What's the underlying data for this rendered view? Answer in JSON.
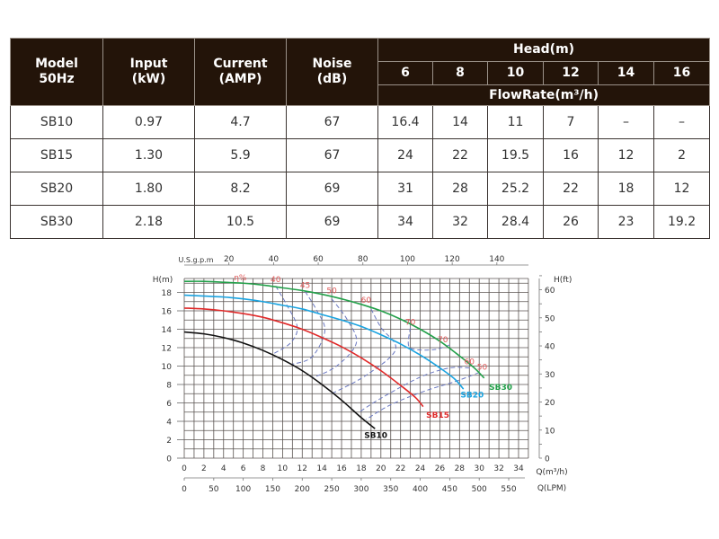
{
  "table": {
    "headers": {
      "model": [
        "Model",
        "50Hz"
      ],
      "input": [
        "Input",
        "(kW)"
      ],
      "current": [
        "Current",
        "(AMP)"
      ],
      "noise": [
        "Noise",
        "(dB)"
      ],
      "head_group": "Head(m)",
      "head_values": [
        "6",
        "8",
        "10",
        "12",
        "14",
        "16"
      ],
      "flow_group": "FlowRate(m³/h)"
    },
    "rows": [
      {
        "model": "SB10",
        "input": "0.97",
        "current": "4.7",
        "noise": "67",
        "flows": [
          "16.4",
          "14",
          "11",
          "7",
          "–",
          "–"
        ]
      },
      {
        "model": "SB15",
        "input": "1.30",
        "current": "5.9",
        "noise": "67",
        "flows": [
          "24",
          "22",
          "19.5",
          "16",
          "12",
          "2"
        ]
      },
      {
        "model": "SB20",
        "input": "1.80",
        "current": "8.2",
        "noise": "69",
        "flows": [
          "31",
          "28",
          "25.2",
          "22",
          "18",
          "12"
        ]
      },
      {
        "model": "SB30",
        "input": "2.18",
        "current": "10.5",
        "noise": "69",
        "flows": [
          "34",
          "32",
          "28.4",
          "26",
          "23",
          "19.2"
        ]
      }
    ]
  },
  "chart_data": {
    "type": "line",
    "title": "",
    "xlabel": "Q(m³/h)",
    "ylabel": "H(m)",
    "secondary_xlabel_bottom": "Q(LPM)",
    "secondary_xlabel_top": "U.S.g.p.m",
    "secondary_ylabel": "H(ft)",
    "xlim": [
      0,
      35
    ],
    "ylim": [
      0,
      20
    ],
    "grid": true,
    "x_ticks": [
      0,
      2,
      4,
      6,
      8,
      10,
      12,
      14,
      16,
      18,
      20,
      22,
      24,
      26,
      28,
      30,
      32,
      34
    ],
    "y_ticks": [
      0,
      2,
      4,
      6,
      8,
      10,
      12,
      14,
      16,
      18
    ],
    "lpm_ticks": [
      0,
      50,
      100,
      150,
      200,
      250,
      300,
      350,
      400,
      450,
      500,
      550
    ],
    "gpm_ticks": [
      20,
      40,
      60,
      80,
      100,
      120,
      140
    ],
    "ft_ticks": [
      0,
      10,
      20,
      30,
      40,
      50,
      60
    ],
    "series": [
      {
        "name": "SB10",
        "color": "#111111",
        "points": [
          [
            0,
            13.7
          ],
          [
            2,
            13.5
          ],
          [
            4,
            13.1
          ],
          [
            6,
            12.5
          ],
          [
            8,
            11.7
          ],
          [
            10,
            10.7
          ],
          [
            12,
            9.5
          ],
          [
            14,
            8.0
          ],
          [
            16,
            6.3
          ],
          [
            18,
            4.4
          ],
          [
            19.4,
            3.2
          ]
        ]
      },
      {
        "name": "SB15",
        "color": "#e02a2a",
        "points": [
          [
            0,
            16.3
          ],
          [
            2,
            16.2
          ],
          [
            4,
            16.0
          ],
          [
            6,
            15.7
          ],
          [
            8,
            15.3
          ],
          [
            10,
            14.7
          ],
          [
            12,
            14.0
          ],
          [
            14,
            13.1
          ],
          [
            16,
            12.1
          ],
          [
            18,
            10.9
          ],
          [
            20,
            9.5
          ],
          [
            22,
            7.9
          ],
          [
            23.5,
            6.6
          ],
          [
            24.3,
            5.6
          ]
        ]
      },
      {
        "name": "SB20",
        "color": "#1aa3e0",
        "points": [
          [
            0,
            17.7
          ],
          [
            2,
            17.6
          ],
          [
            4,
            17.5
          ],
          [
            6,
            17.3
          ],
          [
            8,
            17.0
          ],
          [
            10,
            16.6
          ],
          [
            12,
            16.2
          ],
          [
            14,
            15.6
          ],
          [
            16,
            15.0
          ],
          [
            18,
            14.3
          ],
          [
            20,
            13.4
          ],
          [
            22,
            12.4
          ],
          [
            24,
            11.2
          ],
          [
            26,
            9.8
          ],
          [
            27.5,
            8.6
          ],
          [
            28.4,
            7.5
          ]
        ]
      },
      {
        "name": "SB30",
        "color": "#23a04a",
        "points": [
          [
            0,
            19.2
          ],
          [
            2,
            19.2
          ],
          [
            4,
            19.1
          ],
          [
            6,
            19.0
          ],
          [
            8,
            18.8
          ],
          [
            10,
            18.5
          ],
          [
            12,
            18.2
          ],
          [
            14,
            17.8
          ],
          [
            16,
            17.3
          ],
          [
            18,
            16.7
          ],
          [
            20,
            16.0
          ],
          [
            22,
            15.1
          ],
          [
            24,
            14.0
          ],
          [
            26,
            12.7
          ],
          [
            28,
            11.1
          ],
          [
            29.5,
            9.8
          ],
          [
            30.5,
            8.7
          ]
        ]
      }
    ],
    "efficiency_label": "η%",
    "efficiency_curves": [
      {
        "label": "40",
        "points": [
          [
            9.3,
            18.7
          ],
          [
            10.5,
            16.5
          ],
          [
            11.5,
            14.2
          ],
          [
            10.8,
            12.5
          ],
          [
            9.0,
            11.3
          ]
        ]
      },
      {
        "label": "45",
        "points": [
          [
            12.3,
            18.1
          ],
          [
            13.5,
            16.0
          ],
          [
            14.3,
            13.8
          ],
          [
            13.0,
            11.0
          ],
          [
            11.0,
            10.2
          ]
        ]
      },
      {
        "label": "50",
        "points": [
          [
            15.0,
            17.3
          ],
          [
            16.6,
            15.0
          ],
          [
            17.5,
            12.5
          ],
          [
            15.5,
            10.0
          ],
          [
            13.0,
            8.7
          ]
        ]
      },
      {
        "label": "60",
        "points": [
          [
            19.0,
            16.2
          ],
          [
            20.0,
            14.2
          ],
          [
            21.5,
            11.8
          ],
          [
            18.5,
            9.0
          ],
          [
            15.0,
            7.0
          ]
        ]
      },
      {
        "label": "70",
        "points": [
          [
            23.0,
            14.2
          ],
          [
            22.8,
            12.3
          ],
          [
            23.5,
            11.8
          ],
          [
            25.5,
            11.8
          ],
          [
            27.0,
            12.3
          ]
        ]
      },
      {
        "label": "60",
        "points": [
          [
            29.0,
            9.8
          ],
          [
            27.0,
            9.8
          ],
          [
            24.0,
            8.8
          ],
          [
            20.0,
            6.5
          ],
          [
            17.8,
            5.0
          ]
        ]
      },
      {
        "label": "50",
        "points": [
          [
            30.0,
            9.3
          ],
          [
            27.5,
            8.3
          ],
          [
            24.5,
            7.3
          ],
          [
            21.0,
            5.8
          ],
          [
            18.5,
            4.2
          ]
        ]
      }
    ],
    "efficiency_label_positions_data": [
      {
        "text": "40",
        "q": 9.3,
        "h": 19.1
      },
      {
        "text": "45",
        "q": 12.3,
        "h": 18.5
      },
      {
        "text": "50",
        "q": 15.0,
        "h": 17.9
      },
      {
        "text": "60",
        "q": 18.5,
        "h": 16.9
      },
      {
        "text": "70",
        "q": 23.0,
        "h": 14.5
      },
      {
        "text": "70",
        "q": 26.3,
        "h": 12.6
      },
      {
        "text": "60",
        "q": 29.0,
        "h": 10.2
      },
      {
        "text": "50",
        "q": 30.3,
        "h": 9.6
      }
    ],
    "series_labels": [
      {
        "name": "SB10",
        "color": "#111111",
        "q": 18.3,
        "h": 2.2
      },
      {
        "name": "SB15",
        "color": "#e02a2a",
        "q": 24.6,
        "h": 4.4
      },
      {
        "name": "SB20",
        "color": "#1aa3e0",
        "q": 28.1,
        "h": 6.6
      },
      {
        "name": "SB30",
        "color": "#23a04a",
        "q": 31.0,
        "h": 7.4
      }
    ]
  }
}
